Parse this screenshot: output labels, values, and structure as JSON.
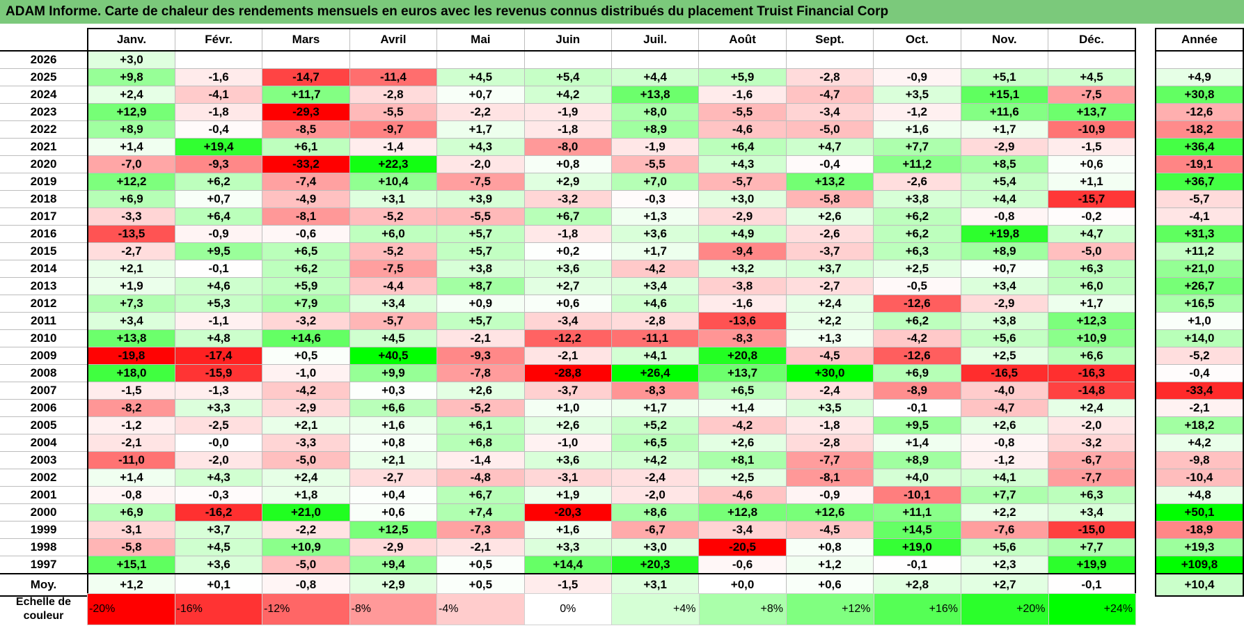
{
  "title": "ADAM Informe. Carte de chaleur des rendements mensuels en euros avec les revenus connus distribués du placement Truist Financial Corp",
  "chart_data": {
    "type": "heatmap",
    "title": "ADAM Informe. Carte de chaleur des rendements mensuels en euros avec les revenus connus distribués du placement Truist Financial Corp",
    "months": [
      "Janv.",
      "Févr.",
      "Mars",
      "Avril",
      "Mai",
      "Juin",
      "Juil.",
      "Août",
      "Sept.",
      "Oct.",
      "Nov.",
      "Déc."
    ],
    "year_header": "Année",
    "rows": [
      {
        "year": "2026",
        "values": [
          "+3,0",
          "",
          "",
          "",
          "",
          "",
          "",
          "",
          "",
          "",
          "",
          ""
        ],
        "annual": ""
      },
      {
        "year": "2025",
        "values": [
          "+9,8",
          "-1,6",
          "-14,7",
          "-11,4",
          "+4,5",
          "+5,4",
          "+4,4",
          "+5,9",
          "-2,8",
          "-0,9",
          "+5,1",
          "+4,5"
        ],
        "annual": "+4,9"
      },
      {
        "year": "2024",
        "values": [
          "+2,4",
          "-4,1",
          "+11,7",
          "-2,8",
          "+0,7",
          "+4,2",
          "+13,8",
          "-1,6",
          "-4,7",
          "+3,5",
          "+15,1",
          "-7,5"
        ],
        "annual": "+30,8"
      },
      {
        "year": "2023",
        "values": [
          "+12,9",
          "-1,8",
          "-29,3",
          "-5,5",
          "-2,2",
          "-1,9",
          "+8,0",
          "-5,5",
          "-3,4",
          "-1,2",
          "+11,6",
          "+13,7"
        ],
        "annual": "-12,6"
      },
      {
        "year": "2022",
        "values": [
          "+8,9",
          "-0,4",
          "-8,5",
          "-9,7",
          "+1,7",
          "-1,8",
          "+8,9",
          "-4,6",
          "-5,0",
          "+1,6",
          "+1,7",
          "-10,9"
        ],
        "annual": "-18,2"
      },
      {
        "year": "2021",
        "values": [
          "+1,4",
          "+19,4",
          "+6,1",
          "-1,4",
          "+4,3",
          "-8,0",
          "-1,9",
          "+6,4",
          "+4,7",
          "+7,7",
          "-2,9",
          "-1,5"
        ],
        "annual": "+36,4"
      },
      {
        "year": "2020",
        "values": [
          "-7,0",
          "-9,3",
          "-33,2",
          "+22,3",
          "-2,0",
          "+0,8",
          "-5,5",
          "+4,3",
          "-0,4",
          "+11,2",
          "+8,5",
          "+0,6"
        ],
        "annual": "-19,1"
      },
      {
        "year": "2019",
        "values": [
          "+12,2",
          "+6,2",
          "-7,4",
          "+10,4",
          "-7,5",
          "+2,9",
          "+7,0",
          "-5,7",
          "+13,2",
          "-2,6",
          "+5,4",
          "+1,1"
        ],
        "annual": "+36,7"
      },
      {
        "year": "2018",
        "values": [
          "+6,9",
          "+0,7",
          "-4,9",
          "+3,1",
          "+3,9",
          "-3,2",
          "-0,3",
          "+3,0",
          "-5,8",
          "+3,8",
          "+4,4",
          "-15,7"
        ],
        "annual": "-5,7"
      },
      {
        "year": "2017",
        "values": [
          "-3,3",
          "+6,4",
          "-8,1",
          "-5,2",
          "-5,5",
          "+6,7",
          "+1,3",
          "-2,9",
          "+2,6",
          "+6,2",
          "-0,8",
          "-0,2"
        ],
        "annual": "-4,1"
      },
      {
        "year": "2016",
        "values": [
          "-13,5",
          "-0,9",
          "-0,6",
          "+6,0",
          "+5,7",
          "-1,8",
          "+3,6",
          "+4,9",
          "-2,6",
          "+6,2",
          "+19,8",
          "+4,7"
        ],
        "annual": "+31,3"
      },
      {
        "year": "2015",
        "values": [
          "-2,7",
          "+9,5",
          "+6,5",
          "-5,2",
          "+5,7",
          "+0,2",
          "+1,7",
          "-9,4",
          "-3,7",
          "+6,3",
          "+8,9",
          "-5,0"
        ],
        "annual": "+11,2"
      },
      {
        "year": "2014",
        "values": [
          "+2,1",
          "-0,1",
          "+6,2",
          "-7,5",
          "+3,8",
          "+3,6",
          "-4,2",
          "+3,2",
          "+3,7",
          "+2,5",
          "+0,7",
          "+6,3"
        ],
        "annual": "+21,0"
      },
      {
        "year": "2013",
        "values": [
          "+1,9",
          "+4,6",
          "+5,9",
          "-4,4",
          "+8,7",
          "+2,7",
          "+3,4",
          "-3,8",
          "-2,7",
          "-0,5",
          "+3,4",
          "+6,0"
        ],
        "annual": "+26,7"
      },
      {
        "year": "2012",
        "values": [
          "+7,3",
          "+5,3",
          "+7,9",
          "+3,4",
          "+0,9",
          "+0,6",
          "+4,6",
          "-1,6",
          "+2,4",
          "-12,6",
          "-2,9",
          "+1,7"
        ],
        "annual": "+16,5"
      },
      {
        "year": "2011",
        "values": [
          "+3,4",
          "-1,1",
          "-3,2",
          "-5,7",
          "+5,7",
          "-3,4",
          "-2,8",
          "-13,6",
          "+2,2",
          "+6,2",
          "+3,8",
          "+12,3"
        ],
        "annual": "+1,0"
      },
      {
        "year": "2010",
        "values": [
          "+13,8",
          "+4,8",
          "+14,6",
          "+4,5",
          "-2,1",
          "-12,2",
          "-11,1",
          "-8,3",
          "+1,3",
          "-4,2",
          "+5,6",
          "+10,9"
        ],
        "annual": "+14,0"
      },
      {
        "year": "2009",
        "values": [
          "-19,8",
          "-17,4",
          "+0,5",
          "+40,5",
          "-9,3",
          "-2,1",
          "+4,1",
          "+20,8",
          "-4,5",
          "-12,6",
          "+2,5",
          "+6,6"
        ],
        "annual": "-5,2"
      },
      {
        "year": "2008",
        "values": [
          "+18,0",
          "-15,9",
          "-1,0",
          "+9,9",
          "-7,8",
          "-28,8",
          "+26,4",
          "+13,7",
          "+30,0",
          "+6,9",
          "-16,5",
          "-16,3"
        ],
        "annual": "-0,4"
      },
      {
        "year": "2007",
        "values": [
          "-1,5",
          "-1,3",
          "-4,2",
          "+0,3",
          "+2,6",
          "-3,7",
          "-8,3",
          "+6,5",
          "-2,4",
          "-8,9",
          "-4,0",
          "-14,8"
        ],
        "annual": "-33,4"
      },
      {
        "year": "2006",
        "values": [
          "-8,2",
          "+3,3",
          "-2,9",
          "+6,6",
          "-5,2",
          "+1,0",
          "+1,7",
          "+1,4",
          "+3,5",
          "-0,1",
          "-4,7",
          "+2,4"
        ],
        "annual": "-2,1"
      },
      {
        "year": "2005",
        "values": [
          "-1,2",
          "-2,5",
          "+2,1",
          "+1,6",
          "+6,1",
          "+2,6",
          "+5,2",
          "-4,2",
          "-1,8",
          "+9,5",
          "+2,6",
          "-2,0"
        ],
        "annual": "+18,2"
      },
      {
        "year": "2004",
        "values": [
          "-2,1",
          "-0,0",
          "-3,3",
          "+0,8",
          "+6,8",
          "-1,0",
          "+6,5",
          "+2,6",
          "-2,8",
          "+1,4",
          "-0,8",
          "-3,2"
        ],
        "annual": "+4,2"
      },
      {
        "year": "2003",
        "values": [
          "-11,0",
          "-2,0",
          "-5,0",
          "+2,1",
          "-1,4",
          "+3,6",
          "+4,2",
          "+8,1",
          "-7,7",
          "+8,9",
          "-1,2",
          "-6,7"
        ],
        "annual": "-9,8"
      },
      {
        "year": "2002",
        "values": [
          "+1,4",
          "+4,3",
          "+2,4",
          "-2,7",
          "-4,8",
          "-3,1",
          "-2,4",
          "+2,5",
          "-8,1",
          "+4,0",
          "+4,1",
          "-7,7"
        ],
        "annual": "-10,4"
      },
      {
        "year": "2001",
        "values": [
          "-0,8",
          "-0,3",
          "+1,8",
          "+0,4",
          "+6,7",
          "+1,9",
          "-2,0",
          "-4,6",
          "-0,9",
          "-10,1",
          "+7,7",
          "+6,3"
        ],
        "annual": "+4,8"
      },
      {
        "year": "2000",
        "values": [
          "+6,9",
          "-16,2",
          "+21,0",
          "+0,6",
          "+7,4",
          "-20,3",
          "+8,6",
          "+12,8",
          "+12,6",
          "+11,1",
          "+2,2",
          "+3,4"
        ],
        "annual": "+50,1"
      },
      {
        "year": "1999",
        "values": [
          "-3,1",
          "+3,7",
          "-2,2",
          "+12,5",
          "-7,3",
          "+1,6",
          "-6,7",
          "-3,4",
          "-4,5",
          "+14,5",
          "-7,6",
          "-15,0"
        ],
        "annual": "-18,9"
      },
      {
        "year": "1998",
        "values": [
          "-5,8",
          "+4,5",
          "+10,9",
          "-2,9",
          "-2,1",
          "+3,3",
          "+3,0",
          "-20,5",
          "+0,8",
          "+19,0",
          "+5,6",
          "+7,7"
        ],
        "annual": "+19,3"
      },
      {
        "year": "1997",
        "values": [
          "+15,1",
          "+3,6",
          "-5,0",
          "+9,4",
          "+0,5",
          "+14,4",
          "+20,3",
          "-0,6",
          "+1,2",
          "-0,1",
          "+2,3",
          "+19,9"
        ],
        "annual": "+109,8"
      }
    ],
    "average": {
      "label": "Moy.",
      "values": [
        "+1,2",
        "+0,1",
        "-0,8",
        "+2,9",
        "+0,5",
        "-1,5",
        "+3,1",
        "+0,0",
        "+0,6",
        "+2,8",
        "+2,7",
        "-0,1"
      ],
      "annual": "+10,4"
    },
    "scale": {
      "label": "Echelle de couleur",
      "labels": [
        "-20%",
        "-16%",
        "-12%",
        "-8%",
        "-4%",
        "0%",
        "+4%",
        "+8%",
        "+12%",
        "+16%",
        "+20%",
        "+24%"
      ],
      "values": [
        -20,
        -16,
        -12,
        -8,
        -4,
        0,
        4,
        8,
        12,
        16,
        20,
        24
      ]
    },
    "colors": {
      "negative": "#ff0000",
      "neutral": "#ffffff",
      "positive": "#00ff00",
      "header": "#7bc97b"
    }
  }
}
